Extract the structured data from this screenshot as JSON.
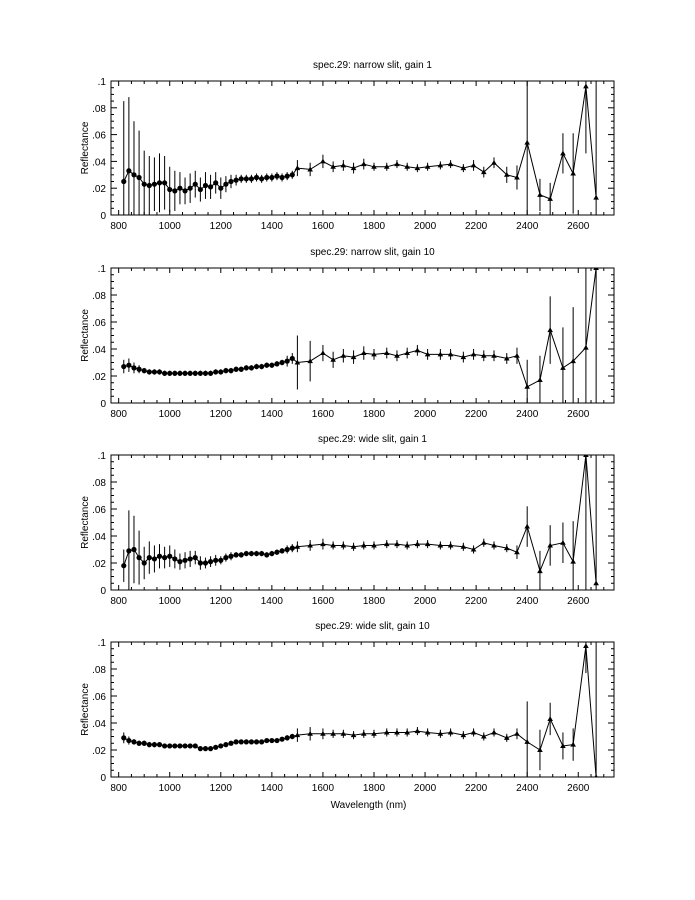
{
  "chart_data": [
    {
      "type": "line",
      "title": "spec.29: narrow slit, gain 1",
      "ylabel": "Reflectance",
      "xlabel": "",
      "xlim": [
        770,
        2740
      ],
      "ylim": [
        0,
        0.1
      ],
      "xticks": [
        800,
        1000,
        1200,
        1400,
        1600,
        1800,
        2000,
        2200,
        2400,
        2600
      ],
      "xtick_labels": [
        "800",
        "1000",
        "1200",
        "1400",
        "1600",
        "1800",
        "2000",
        "2200",
        "2400",
        "2600"
      ],
      "yticks": [
        0,
        0.02,
        0.04,
        0.06,
        0.08,
        0.1
      ],
      "ytick_labels": [
        "0",
        ".02",
        ".04",
        ".06",
        ".08",
        ".1"
      ],
      "series": [
        {
          "x": [
            820,
            840,
            860,
            880,
            900,
            920,
            940,
            960,
            980,
            1000,
            1020,
            1040,
            1060,
            1080,
            1100,
            1120,
            1140,
            1160,
            1180,
            1200,
            1220,
            1240,
            1260,
            1280,
            1300,
            1320,
            1340,
            1360,
            1380,
            1400,
            1420,
            1440,
            1460,
            1480,
            1500,
            1550,
            1600,
            1640,
            1680,
            1720,
            1760,
            1800,
            1850,
            1890,
            1930,
            1970,
            2010,
            2060,
            2100,
            2150,
            2190,
            2230,
            2270,
            2320,
            2360,
            2400,
            2450,
            2490,
            2540,
            2580,
            2630,
            2670
          ],
          "y": [
            0.025,
            0.033,
            0.03,
            0.028,
            0.023,
            0.022,
            0.023,
            0.024,
            0.024,
            0.019,
            0.018,
            0.02,
            0.018,
            0.02,
            0.023,
            0.019,
            0.022,
            0.021,
            0.024,
            0.02,
            0.023,
            0.025,
            0.026,
            0.027,
            0.027,
            0.027,
            0.028,
            0.027,
            0.028,
            0.028,
            0.029,
            0.028,
            0.029,
            0.03,
            0.035,
            0.034,
            0.04,
            0.036,
            0.037,
            0.035,
            0.038,
            0.036,
            0.036,
            0.038,
            0.036,
            0.035,
            0.036,
            0.037,
            0.038,
            0.035,
            0.037,
            0.032,
            0.039,
            0.03,
            0.028,
            0.054,
            0.015,
            0.012,
            0.046,
            0.031,
            0.096,
            0.013
          ],
          "err": [
            0.06,
            0.055,
            0.04,
            0.035,
            0.025,
            0.022,
            0.02,
            0.022,
            0.02,
            0.017,
            0.015,
            0.012,
            0.01,
            0.011,
            0.01,
            0.009,
            0.01,
            0.009,
            0.008,
            0.008,
            0.006,
            0.005,
            0.004,
            0.003,
            0.003,
            0.003,
            0.003,
            0.003,
            0.003,
            0.003,
            0.003,
            0.003,
            0.003,
            0.003,
            0.006,
            0.005,
            0.005,
            0.004,
            0.004,
            0.004,
            0.004,
            0.003,
            0.003,
            0.003,
            0.003,
            0.003,
            0.003,
            0.003,
            0.003,
            0.003,
            0.004,
            0.004,
            0.004,
            0.006,
            0.009,
            0.1,
            0.012,
            0.012,
            0.015,
            0.03,
            0.05,
            0.1
          ]
        }
      ]
    },
    {
      "type": "line",
      "title": "spec.29: narrow slit, gain 10",
      "ylabel": "Reflectance",
      "xlabel": "",
      "xlim": [
        770,
        2740
      ],
      "ylim": [
        0,
        0.1
      ],
      "xticks": [
        800,
        1000,
        1200,
        1400,
        1600,
        1800,
        2000,
        2200,
        2400,
        2600
      ],
      "xtick_labels": [
        "800",
        "1000",
        "1200",
        "1400",
        "1600",
        "1800",
        "2000",
        "2200",
        "2400",
        "2600"
      ],
      "yticks": [
        0,
        0.02,
        0.04,
        0.06,
        0.08,
        0.1
      ],
      "ytick_labels": [
        "0",
        ".02",
        ".04",
        ".06",
        ".08",
        ".1"
      ],
      "series": [
        {
          "x": [
            820,
            840,
            860,
            880,
            900,
            920,
            940,
            960,
            980,
            1000,
            1020,
            1040,
            1060,
            1080,
            1100,
            1120,
            1140,
            1160,
            1180,
            1200,
            1220,
            1240,
            1260,
            1280,
            1300,
            1320,
            1340,
            1360,
            1380,
            1400,
            1420,
            1440,
            1460,
            1480,
            1500,
            1550,
            1600,
            1640,
            1680,
            1720,
            1760,
            1800,
            1850,
            1890,
            1930,
            1970,
            2010,
            2060,
            2100,
            2150,
            2190,
            2230,
            2270,
            2320,
            2360,
            2400,
            2450,
            2490,
            2540,
            2580,
            2630,
            2670
          ],
          "y": [
            0.027,
            0.028,
            0.026,
            0.025,
            0.024,
            0.023,
            0.023,
            0.023,
            0.022,
            0.022,
            0.022,
            0.022,
            0.022,
            0.022,
            0.022,
            0.022,
            0.022,
            0.022,
            0.023,
            0.023,
            0.024,
            0.024,
            0.025,
            0.025,
            0.026,
            0.026,
            0.027,
            0.027,
            0.028,
            0.028,
            0.029,
            0.03,
            0.031,
            0.033,
            0.03,
            0.031,
            0.037,
            0.032,
            0.035,
            0.034,
            0.037,
            0.036,
            0.037,
            0.035,
            0.037,
            0.039,
            0.036,
            0.036,
            0.036,
            0.034,
            0.036,
            0.035,
            0.035,
            0.033,
            0.035,
            0.012,
            0.017,
            0.054,
            0.026,
            0.031,
            0.041,
            0.1
          ],
          "err": [
            0.005,
            0.005,
            0.004,
            0.003,
            0.002,
            0.002,
            0.002,
            0.002,
            0.002,
            0.002,
            0.002,
            0.002,
            0.002,
            0.002,
            0.002,
            0.002,
            0.002,
            0.002,
            0.002,
            0.002,
            0.002,
            0.002,
            0.002,
            0.002,
            0.002,
            0.002,
            0.002,
            0.002,
            0.002,
            0.002,
            0.002,
            0.002,
            0.004,
            0.004,
            0.02,
            0.015,
            0.006,
            0.006,
            0.005,
            0.005,
            0.005,
            0.004,
            0.004,
            0.004,
            0.004,
            0.004,
            0.004,
            0.004,
            0.004,
            0.004,
            0.004,
            0.004,
            0.004,
            0.004,
            0.006,
            0.02,
            0.018,
            0.025,
            0.03,
            0.04,
            0.06,
            0.1
          ]
        }
      ]
    },
    {
      "type": "line",
      "title": "spec.29: wide slit, gain 1",
      "ylabel": "Reflectance",
      "xlabel": "",
      "xlim": [
        770,
        2740
      ],
      "ylim": [
        0,
        0.1
      ],
      "xticks": [
        800,
        1000,
        1200,
        1400,
        1600,
        1800,
        2000,
        2200,
        2400,
        2600
      ],
      "xtick_labels": [
        "800",
        "1000",
        "1200",
        "1400",
        "1600",
        "1800",
        "2000",
        "2200",
        "2400",
        "2600"
      ],
      "yticks": [
        0,
        0.02,
        0.04,
        0.06,
        0.08,
        0.1
      ],
      "ytick_labels": [
        "0",
        ".02",
        ".04",
        ".06",
        ".08",
        ".1"
      ],
      "series": [
        {
          "x": [
            820,
            840,
            860,
            880,
            900,
            920,
            940,
            960,
            980,
            1000,
            1020,
            1040,
            1060,
            1080,
            1100,
            1120,
            1140,
            1160,
            1180,
            1200,
            1220,
            1240,
            1260,
            1280,
            1300,
            1320,
            1340,
            1360,
            1380,
            1400,
            1420,
            1440,
            1460,
            1480,
            1500,
            1550,
            1600,
            1640,
            1680,
            1720,
            1760,
            1800,
            1850,
            1890,
            1930,
            1970,
            2010,
            2060,
            2100,
            2150,
            2190,
            2230,
            2270,
            2320,
            2360,
            2400,
            2450,
            2490,
            2540,
            2580,
            2630,
            2670
          ],
          "y": [
            0.018,
            0.029,
            0.03,
            0.024,
            0.02,
            0.024,
            0.023,
            0.025,
            0.024,
            0.025,
            0.023,
            0.021,
            0.022,
            0.023,
            0.024,
            0.02,
            0.02,
            0.021,
            0.022,
            0.022,
            0.024,
            0.025,
            0.026,
            0.026,
            0.027,
            0.027,
            0.027,
            0.027,
            0.026,
            0.027,
            0.028,
            0.029,
            0.03,
            0.031,
            0.032,
            0.033,
            0.034,
            0.033,
            0.033,
            0.032,
            0.033,
            0.033,
            0.034,
            0.034,
            0.033,
            0.034,
            0.034,
            0.033,
            0.033,
            0.032,
            0.03,
            0.035,
            0.033,
            0.031,
            0.028,
            0.047,
            0.014,
            0.033,
            0.035,
            0.021,
            0.1,
            0.005
          ],
          "err": [
            0.012,
            0.03,
            0.025,
            0.02,
            0.012,
            0.012,
            0.01,
            0.009,
            0.008,
            0.008,
            0.007,
            0.006,
            0.006,
            0.006,
            0.005,
            0.005,
            0.004,
            0.004,
            0.004,
            0.003,
            0.003,
            0.003,
            0.002,
            0.002,
            0.002,
            0.002,
            0.002,
            0.002,
            0.002,
            0.002,
            0.002,
            0.002,
            0.003,
            0.003,
            0.004,
            0.004,
            0.004,
            0.003,
            0.003,
            0.003,
            0.003,
            0.003,
            0.003,
            0.003,
            0.003,
            0.003,
            0.003,
            0.003,
            0.003,
            0.003,
            0.003,
            0.003,
            0.003,
            0.003,
            0.005,
            0.015,
            0.015,
            0.015,
            0.015,
            0.03,
            0.1,
            0.1
          ]
        }
      ]
    },
    {
      "type": "line",
      "title": "spec.29: wide slit, gain 10",
      "ylabel": "Reflectance",
      "xlabel": "Wavelength (nm)",
      "xlim": [
        770,
        2740
      ],
      "ylim": [
        0,
        0.1
      ],
      "xticks": [
        800,
        1000,
        1200,
        1400,
        1600,
        1800,
        2000,
        2200,
        2400,
        2600
      ],
      "xtick_labels": [
        "800",
        "1000",
        "1200",
        "1400",
        "1600",
        "1800",
        "2000",
        "2200",
        "2400",
        "2600"
      ],
      "yticks": [
        0,
        0.02,
        0.04,
        0.06,
        0.08,
        0.1
      ],
      "ytick_labels": [
        "0",
        ".02",
        ".04",
        ".06",
        ".08",
        ".1"
      ],
      "series": [
        {
          "x": [
            820,
            840,
            860,
            880,
            900,
            920,
            940,
            960,
            980,
            1000,
            1020,
            1040,
            1060,
            1080,
            1100,
            1120,
            1140,
            1160,
            1180,
            1200,
            1220,
            1240,
            1260,
            1280,
            1300,
            1320,
            1340,
            1360,
            1380,
            1400,
            1420,
            1440,
            1460,
            1480,
            1500,
            1550,
            1600,
            1640,
            1680,
            1720,
            1760,
            1800,
            1850,
            1890,
            1930,
            1970,
            2010,
            2060,
            2100,
            2150,
            2190,
            2230,
            2270,
            2320,
            2360,
            2400,
            2450,
            2490,
            2540,
            2580,
            2630,
            2670
          ],
          "y": [
            0.029,
            0.027,
            0.026,
            0.025,
            0.025,
            0.024,
            0.024,
            0.024,
            0.023,
            0.023,
            0.023,
            0.023,
            0.023,
            0.023,
            0.023,
            0.021,
            0.021,
            0.021,
            0.022,
            0.023,
            0.024,
            0.025,
            0.026,
            0.026,
            0.026,
            0.026,
            0.026,
            0.026,
            0.027,
            0.027,
            0.027,
            0.028,
            0.029,
            0.03,
            0.031,
            0.032,
            0.032,
            0.032,
            0.032,
            0.031,
            0.032,
            0.032,
            0.033,
            0.033,
            0.033,
            0.034,
            0.033,
            0.032,
            0.033,
            0.031,
            0.033,
            0.03,
            0.033,
            0.029,
            0.032,
            0.026,
            0.02,
            0.043,
            0.023,
            0.024,
            0.097,
            0.0
          ],
          "err": [
            0.004,
            0.003,
            0.002,
            0.002,
            0.002,
            0.002,
            0.002,
            0.001,
            0.001,
            0.001,
            0.001,
            0.001,
            0.001,
            0.001,
            0.001,
            0.001,
            0.001,
            0.001,
            0.001,
            0.001,
            0.001,
            0.001,
            0.001,
            0.001,
            0.001,
            0.001,
            0.001,
            0.001,
            0.001,
            0.001,
            0.001,
            0.001,
            0.002,
            0.002,
            0.005,
            0.005,
            0.004,
            0.003,
            0.003,
            0.003,
            0.003,
            0.003,
            0.003,
            0.003,
            0.003,
            0.003,
            0.003,
            0.003,
            0.003,
            0.003,
            0.003,
            0.003,
            0.003,
            0.003,
            0.004,
            0.03,
            0.015,
            0.012,
            0.01,
            0.012,
            0.02,
            0.1
          ]
        }
      ]
    }
  ]
}
